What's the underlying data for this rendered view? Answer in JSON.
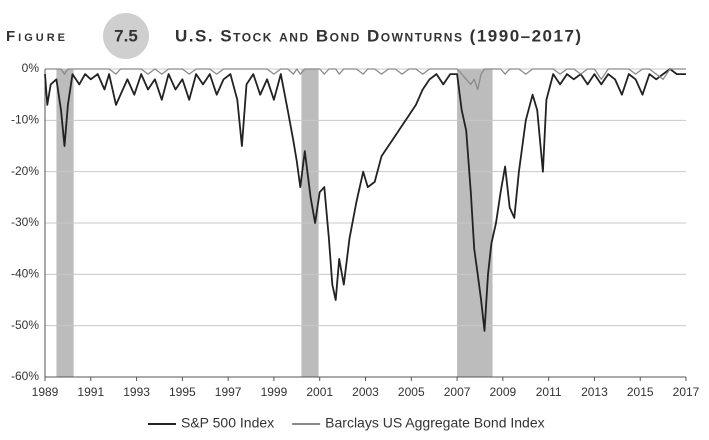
{
  "chart_data": {
    "type": "line",
    "figure_label": "Figure",
    "figure_number": "7.5",
    "title": "U.S. Stock and Bond Downturns (1990–2017)",
    "x": [
      1989.0,
      1989.1,
      1989.25,
      1989.5,
      1989.7,
      1989.85,
      1990.0,
      1990.2,
      1990.5,
      1990.75,
      1991.0,
      1991.3,
      1991.6,
      1991.8,
      1992.1,
      1992.3,
      1992.6,
      1992.9,
      1993.2,
      1993.5,
      1993.8,
      1994.1,
      1994.4,
      1994.7,
      1995.0,
      1995.3,
      1995.6,
      1995.9,
      1996.2,
      1996.5,
      1996.8,
      1997.1,
      1997.4,
      1997.6,
      1997.8,
      1998.1,
      1998.4,
      1998.7,
      1999.0,
      1999.3,
      1999.6,
      1999.85,
      2000.0,
      2000.15,
      2000.35,
      2000.6,
      2000.8,
      2001.0,
      2001.2,
      2001.4,
      2001.55,
      2001.7,
      2001.85,
      2002.05,
      2002.3,
      2002.6,
      2002.9,
      2003.1,
      2003.4,
      2003.7,
      2004.0,
      2004.3,
      2004.6,
      2004.9,
      2005.2,
      2005.5,
      2005.8,
      2006.1,
      2006.4,
      2006.7,
      2007.0,
      2007.2,
      2007.4,
      2007.6,
      2007.75,
      2007.9,
      2008.05,
      2008.2,
      2008.35,
      2008.5,
      2008.7,
      2008.9,
      2009.1,
      2009.3,
      2009.5,
      2009.7,
      2010.0,
      2010.3,
      2010.5,
      2010.75,
      2010.9,
      2011.2,
      2011.5,
      2011.8,
      2012.1,
      2012.4,
      2012.7,
      2013.0,
      2013.3,
      2013.6,
      2013.9,
      2014.2,
      2014.5,
      2014.8,
      2015.1,
      2015.4,
      2015.7,
      2016.0,
      2016.3,
      2016.6,
      2016.9,
      2017.0
    ],
    "series": [
      {
        "name": "S&P 500 Index",
        "color": "#222222",
        "values": [
          -1,
          -7,
          -3,
          -2,
          -8,
          -15,
          -7,
          -1,
          -3,
          -1,
          -2,
          -1,
          -4,
          -1,
          -7,
          -5,
          -2,
          -5,
          -1,
          -4,
          -2,
          -6,
          -1,
          -4,
          -2,
          -6,
          -1,
          -3,
          -1,
          -5,
          -2,
          -1,
          -6,
          -15,
          -3,
          -1,
          -5,
          -2,
          -6,
          -1,
          -8,
          -14,
          -18,
          -23,
          -16,
          -25,
          -30,
          -24,
          -23,
          -33,
          -42,
          -45,
          -37,
          -42,
          -33,
          -26,
          -20,
          -23,
          -22,
          -17,
          -15,
          -13,
          -11,
          -9,
          -7,
          -4,
          -2,
          -1,
          -3,
          -1,
          -1,
          -8,
          -12,
          -24,
          -35,
          -40,
          -45,
          -51,
          -40,
          -34,
          -30,
          -24,
          -19,
          -27,
          -29,
          -20,
          -10,
          -5,
          -8,
          -20,
          -6,
          -1,
          -3,
          -1,
          -2,
          -1,
          -3,
          -1,
          -3,
          -1,
          -2,
          -5,
          -1,
          -2,
          -5,
          -1,
          -2,
          -1,
          0,
          -1,
          -1,
          -1
        ]
      },
      {
        "name": "Barclays US Aggregate Bond Index",
        "color": "#8a8a8a",
        "values": [
          0,
          0,
          0,
          0,
          0,
          -1,
          0,
          0,
          0,
          0,
          0,
          0,
          0,
          0,
          -1,
          0,
          0,
          0,
          0,
          -1,
          0,
          -1,
          0,
          0,
          0,
          -1,
          0,
          0,
          0,
          -1,
          0,
          0,
          0,
          0,
          0,
          0,
          0,
          0,
          -1,
          0,
          0,
          -1,
          0,
          -1,
          0,
          0,
          0,
          0,
          -1,
          0,
          0,
          0,
          -1,
          0,
          0,
          0,
          -1,
          0,
          0,
          -1,
          0,
          0,
          -1,
          0,
          0,
          -1,
          0,
          0,
          0,
          0,
          0,
          -1,
          -2,
          -3,
          -2,
          -4,
          -1,
          0,
          0,
          0,
          0,
          0,
          -1,
          0,
          0,
          0,
          -1,
          0,
          0,
          0,
          0,
          0,
          -1,
          0,
          0,
          -1,
          0,
          0,
          -2,
          0,
          0,
          0,
          0,
          -1,
          0,
          0,
          -1,
          -2,
          0,
          0,
          0,
          0
        ]
      }
    ],
    "shaded_periods": [
      [
        1989.5,
        1990.25
      ],
      [
        2000.2,
        2000.95
      ],
      [
        2007.0,
        2008.55
      ]
    ],
    "shade_color": "#bcbcbc",
    "xlim": [
      1989,
      2017
    ],
    "xticks": [
      1989,
      1991,
      1993,
      1995,
      1997,
      1999,
      2001,
      2003,
      2005,
      2007,
      2009,
      2011,
      2013,
      2015,
      2017
    ],
    "ylim": [
      -60,
      0
    ],
    "yticks": [
      {
        "value": 0,
        "label": "0%"
      },
      {
        "value": -10,
        "label": "-10%"
      },
      {
        "value": -20,
        "label": "-20%"
      },
      {
        "value": -30,
        "label": "-30%"
      },
      {
        "value": -40,
        "label": "-40%"
      },
      {
        "value": -50,
        "label": "-50%"
      },
      {
        "value": -60,
        "label": "-60%"
      }
    ],
    "grid": true
  }
}
